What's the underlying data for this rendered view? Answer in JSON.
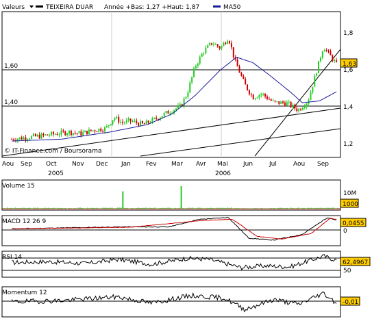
{
  "header": {
    "valeurs_label": "Valeurs",
    "stock_name": "TEIXEIRA DUAR",
    "year_range_text": "Année +Bas: 1,27 +Haut: 1,87",
    "ma_label": "MA50"
  },
  "colors": {
    "up": "#22cc22",
    "down": "#cc0000",
    "ma50": "#1a1a99",
    "grid": "#000000",
    "value_box": "#ffcc00",
    "macd_line": "#000000",
    "signal_line": "#cc0000",
    "volume_bar": "#22cc22"
  },
  "copyright": "© IT-Finance.com / Boursorama",
  "chart_data": [
    {
      "type": "candlestick",
      "title": "TEIXEIRA DUAR",
      "x_months": [
        "Aou",
        "Sep",
        "Oct",
        "Nov",
        "Dec",
        "Jan",
        "Fev",
        "Mar",
        "Avr",
        "Mai",
        "Jun",
        "Jul",
        "Aou",
        "Sep"
      ],
      "x_years": [
        "2005",
        "2006"
      ],
      "y_ticks": [
        "1,8",
        "1,6",
        "1,4",
        "1,2"
      ],
      "ylim": [
        1.12,
        1.92
      ],
      "horizontal_levels": [
        {
          "label": "1,60",
          "value": 1.6
        },
        {
          "label": "1,40",
          "value": 1.4
        }
      ],
      "last_value_label": "1,63",
      "last_value": 1.63,
      "series": [
        {
          "name": "Price",
          "points": [
            [
              "2005-08-01",
              1.22
            ],
            [
              "2005-08-20",
              1.23
            ],
            [
              "2005-09-10",
              1.24
            ],
            [
              "2005-09-25",
              1.25
            ],
            [
              "2005-10-10",
              1.26
            ],
            [
              "2005-10-25",
              1.25
            ],
            [
              "2005-11-10",
              1.27
            ],
            [
              "2005-11-25",
              1.28
            ],
            [
              "2005-12-05",
              1.34
            ],
            [
              "2005-12-15",
              1.31
            ],
            [
              "2005-12-25",
              1.32
            ],
            [
              "2006-01-10",
              1.3
            ],
            [
              "2006-01-25",
              1.33
            ],
            [
              "2006-02-10",
              1.37
            ],
            [
              "2006-02-25",
              1.4
            ],
            [
              "2006-03-05",
              1.47
            ],
            [
              "2006-03-15",
              1.62
            ],
            [
              "2006-03-25",
              1.7
            ],
            [
              "2006-04-05",
              1.75
            ],
            [
              "2006-04-15",
              1.72
            ],
            [
              "2006-04-25",
              1.78
            ],
            [
              "2006-05-03",
              1.65
            ],
            [
              "2006-05-15",
              1.52
            ],
            [
              "2006-05-25",
              1.45
            ],
            [
              "2006-06-05",
              1.47
            ],
            [
              "2006-06-20",
              1.42
            ],
            [
              "2006-07-05",
              1.42
            ],
            [
              "2006-07-20",
              1.38
            ],
            [
              "2006-08-01",
              1.43
            ],
            [
              "2006-08-10",
              1.57
            ],
            [
              "2006-08-20",
              1.73
            ],
            [
              "2006-08-28",
              1.68
            ],
            [
              "2006-09-05",
              1.63
            ]
          ]
        },
        {
          "name": "MA50",
          "points": [
            [
              "2005-08-01",
              1.21
            ],
            [
              "2005-10-01",
              1.22
            ],
            [
              "2005-12-01",
              1.26
            ],
            [
              "2006-01-15",
              1.3
            ],
            [
              "2006-02-15",
              1.36
            ],
            [
              "2006-03-15",
              1.46
            ],
            [
              "2006-04-15",
              1.6
            ],
            [
              "2006-05-05",
              1.67
            ],
            [
              "2006-05-25",
              1.64
            ],
            [
              "2006-06-15",
              1.57
            ],
            [
              "2006-07-10",
              1.48
            ],
            [
              "2006-07-25",
              1.42
            ],
            [
              "2006-08-15",
              1.43
            ],
            [
              "2006-09-05",
              1.48
            ]
          ]
        }
      ]
    },
    {
      "type": "bar",
      "title": "Volume 15",
      "y_ticks": [
        "10M"
      ],
      "last_value_label": "1000",
      "spikes": [
        [
          "2005-12-15",
          8.5
        ],
        [
          "2006-02-25",
          11
        ]
      ],
      "ylim": [
        0,
        14
      ]
    },
    {
      "type": "line",
      "title": "MACD 12 26 9",
      "y_ticks": [
        "0"
      ],
      "last_value_label": "0,0455",
      "ylim": [
        -0.09,
        0.07
      ],
      "series": [
        {
          "name": "MACD",
          "points": [
            [
              "2005-08-01",
              0
            ],
            [
              "2005-12-15",
              0.01
            ],
            [
              "2006-02-10",
              0.01
            ],
            [
              "2006-03-20",
              0.05
            ],
            [
              "2006-04-25",
              0.06
            ],
            [
              "2006-05-20",
              -0.05
            ],
            [
              "2006-06-20",
              -0.06
            ],
            [
              "2006-07-25",
              -0.03
            ],
            [
              "2006-08-25",
              0.06
            ],
            [
              "2006-09-05",
              0.0455
            ]
          ]
        },
        {
          "name": "Signal",
          "points": [
            [
              "2005-08-01",
              0
            ],
            [
              "2005-12-25",
              0.008
            ],
            [
              "2006-03-25",
              0.045
            ],
            [
              "2006-04-30",
              0.05
            ],
            [
              "2006-05-30",
              -0.04
            ],
            [
              "2006-06-30",
              -0.055
            ],
            [
              "2006-08-05",
              -0.025
            ],
            [
              "2006-08-28",
              0.055
            ],
            [
              "2006-09-05",
              0.05
            ]
          ]
        }
      ]
    },
    {
      "type": "line",
      "title": "RSI 14",
      "y_ticks": [
        "50"
      ],
      "last_value_label": "62,4967",
      "ylim": [
        10,
        90
      ],
      "series": [
        {
          "name": "RSI",
          "points": [
            [
              "2005-08-01",
              55
            ],
            [
              "2005-09-15",
              58
            ],
            [
              "2005-11-01",
              52
            ],
            [
              "2005-12-10",
              65
            ],
            [
              "2006-01-20",
              50
            ],
            [
              "2006-03-05",
              68
            ],
            [
              "2006-04-01",
              65
            ],
            [
              "2006-05-10",
              40
            ],
            [
              "2006-06-10",
              45
            ],
            [
              "2006-07-10",
              42
            ],
            [
              "2006-08-20",
              75
            ],
            [
              "2006-09-05",
              62.4967
            ]
          ]
        }
      ]
    },
    {
      "type": "line",
      "title": "Momentum 12",
      "y_ticks": [
        "0"
      ],
      "last_value_label": "-0,01",
      "ylim": [
        -0.12,
        0.12
      ],
      "series": [
        {
          "name": "Momentum",
          "points": [
            [
              "2005-08-01",
              0
            ],
            [
              "2005-10-01",
              0.01
            ],
            [
              "2005-12-10",
              0.04
            ],
            [
              "2006-01-20",
              -0.01
            ],
            [
              "2006-03-10",
              0.05
            ],
            [
              "2006-04-20",
              0.03
            ],
            [
              "2006-05-15",
              -0.06
            ],
            [
              "2006-06-20",
              0.02
            ],
            [
              "2006-07-20",
              -0.02
            ],
            [
              "2006-08-20",
              0.07
            ],
            [
              "2006-09-05",
              -0.01
            ]
          ]
        }
      ]
    }
  ]
}
